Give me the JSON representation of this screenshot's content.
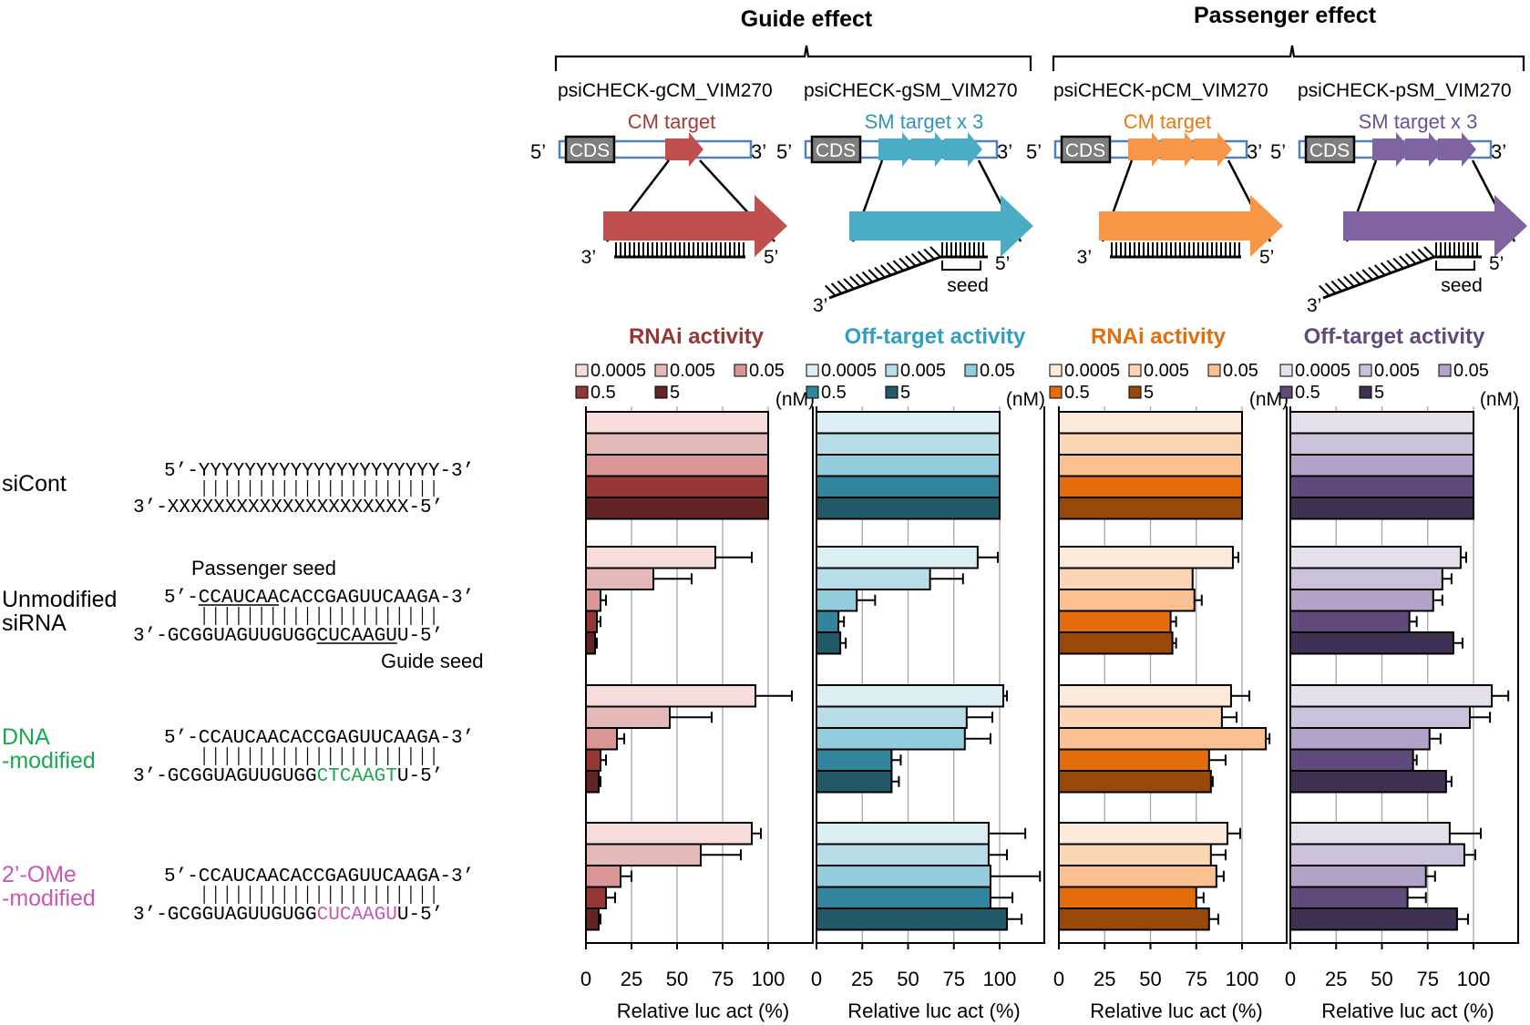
{
  "sections": {
    "guide": "Guide effect",
    "passenger": "Passenger effect"
  },
  "constructs": [
    {
      "name": "psiCHECK-gCM_VIM270",
      "target": "CM target",
      "color": "#c0504d",
      "label_color": "#a33a36",
      "seed": false
    },
    {
      "name": "psiCHECK-gSM_VIM270",
      "target": "SM target x 3",
      "color": "#4bacc6",
      "label_color": "#2f97b3",
      "seed": true
    },
    {
      "name": "psiCHECK-pCM_VIM270",
      "target": "CM target",
      "color": "#f79646",
      "label_color": "#e8780f",
      "seed": false
    },
    {
      "name": "psiCHECK-pSM_VIM270",
      "target": "SM target x 3",
      "color": "#8064a2",
      "label_color": "#6c4f95",
      "seed": true
    }
  ],
  "diagram_labels": {
    "cds": "CDS",
    "five_prime": "5’",
    "three_prime": "3’",
    "seed": "seed"
  },
  "sequences": {
    "rows": [
      {
        "label_lines": [
          "siCont"
        ],
        "label_color": "#000000",
        "top": "5’-YYYYYYYYYYYYYYYYYYYYY-3’",
        "bottom": "3’-XXXXXXXXXXXXXXXXXXXXX-5’",
        "modified": ""
      },
      {
        "label_lines": [
          "Unmodified",
          "siRNA"
        ],
        "label_color": "#000000",
        "top": "5’-CCAUCAACACCGAGUUCAAGA-3’",
        "bottom": "3’-GCGGUAGUUGUGGCUCAAGUU-5’",
        "modified": ""
      },
      {
        "label_lines": [
          "DNA",
          "-modified"
        ],
        "label_color": "#1aa850",
        "top": "5’-CCAUCAACACCGAGUUCAAGA-3’",
        "bottom_pre": "3’-GCGGUAGUUGUGG",
        "bottom_mod": "CTCAAGT",
        "bottom_post": "U-5’",
        "modified": "#1aa850"
      },
      {
        "label_lines": [
          "2’-OMe",
          "-modified"
        ],
        "label_color": "#c957b4",
        "top": "5’-CCAUCAACACCGAGUUCAAGA-3’",
        "bottom_pre": "3’-GCGGUAGUUGUGG",
        "bottom_mod": "CUCAAGU",
        "bottom_post": "U-5’",
        "modified": "#c957b4"
      }
    ],
    "passenger_seed": "Passenger seed",
    "guide_seed": "Guide seed"
  },
  "chart_data": [
    {
      "type": "bar",
      "orientation": "horizontal",
      "title": "RNAi activity",
      "title_color": "#953735",
      "xlabel": "Relative luc act (%)",
      "xlim": [
        0,
        125
      ],
      "xticks": [
        0,
        25,
        50,
        75,
        100
      ],
      "legend_unit": "(nM)",
      "categories": [
        "siCont",
        "Unmodified siRNA",
        "DNA-modified",
        "2’-OMe-modified"
      ],
      "series": [
        {
          "name": "0.0005",
          "color": "#f6dddc",
          "values": [
            100,
            71,
            93,
            91
          ],
          "errors": [
            0,
            20,
            20,
            5
          ]
        },
        {
          "name": "0.005",
          "color": "#e5b9b7",
          "values": [
            100,
            37,
            46,
            63
          ],
          "errors": [
            0,
            21,
            23,
            22
          ]
        },
        {
          "name": "0.05",
          "color": "#d99694",
          "values": [
            100,
            8,
            17,
            19
          ],
          "errors": [
            0,
            3,
            4,
            6
          ]
        },
        {
          "name": "0.5",
          "color": "#953735",
          "values": [
            100,
            6,
            8,
            11
          ],
          "errors": [
            0,
            2,
            3,
            5
          ]
        },
        {
          "name": "5",
          "color": "#632523",
          "values": [
            100,
            5,
            7,
            7
          ],
          "errors": [
            0,
            1,
            1,
            1
          ]
        }
      ]
    },
    {
      "type": "bar",
      "orientation": "horizontal",
      "title": "Off-target activity",
      "title_color": "#31a0c0",
      "xlabel": "Relative luc act (%)",
      "xlim": [
        0,
        125
      ],
      "xticks": [
        0,
        25,
        50,
        75,
        100
      ],
      "legend_unit": "(nM)",
      "categories": [
        "siCont",
        "Unmodified siRNA",
        "DNA-modified",
        "2’-OMe-modified"
      ],
      "series": [
        {
          "name": "0.0005",
          "color": "#daeef3",
          "values": [
            100,
            88,
            102,
            94
          ],
          "errors": [
            0,
            11,
            2,
            20
          ]
        },
        {
          "name": "0.005",
          "color": "#b7dde8",
          "values": [
            100,
            62,
            82,
            94
          ],
          "errors": [
            0,
            18,
            14,
            10
          ]
        },
        {
          "name": "0.05",
          "color": "#93cddd",
          "values": [
            100,
            22,
            81,
            95
          ],
          "errors": [
            0,
            10,
            14,
            27
          ]
        },
        {
          "name": "0.5",
          "color": "#31849b",
          "values": [
            100,
            12,
            41,
            95
          ],
          "errors": [
            0,
            3,
            5,
            12
          ]
        },
        {
          "name": "5",
          "color": "#215967",
          "values": [
            100,
            13,
            41,
            104
          ],
          "errors": [
            0,
            3,
            4,
            8
          ]
        }
      ]
    },
    {
      "type": "bar",
      "orientation": "horizontal",
      "title": "RNAi activity",
      "title_color": "#e46c0a",
      "xlabel": "Relative luc act (%)",
      "xlim": [
        0,
        125
      ],
      "xticks": [
        0,
        25,
        50,
        75,
        100
      ],
      "legend_unit": "(nM)",
      "categories": [
        "siCont",
        "Unmodified siRNA",
        "DNA-modified",
        "2’-OMe-modified"
      ],
      "series": [
        {
          "name": "0.0005",
          "color": "#fdeada",
          "values": [
            100,
            95,
            94,
            92
          ],
          "errors": [
            0,
            3,
            10,
            7
          ]
        },
        {
          "name": "0.005",
          "color": "#fcd5b5",
          "values": [
            100,
            73,
            89,
            83
          ],
          "errors": [
            0,
            0,
            8,
            8
          ]
        },
        {
          "name": "0.05",
          "color": "#fac090",
          "values": [
            100,
            74,
            113,
            86
          ],
          "errors": [
            0,
            4,
            2,
            4
          ]
        },
        {
          "name": "0.5",
          "color": "#e46c0a",
          "values": [
            100,
            61,
            82,
            75
          ],
          "errors": [
            0,
            3,
            9,
            4
          ]
        },
        {
          "name": "5",
          "color": "#984807",
          "values": [
            100,
            62,
            83,
            82
          ],
          "errors": [
            0,
            2,
            1,
            5
          ]
        }
      ]
    },
    {
      "type": "bar",
      "orientation": "horizontal",
      "title": "Off-target activity",
      "title_color": "#604a7b",
      "xlabel": "Relative luc act (%)",
      "xlim": [
        0,
        125
      ],
      "xticks": [
        0,
        25,
        50,
        75,
        100
      ],
      "legend_unit": "(nM)",
      "categories": [
        "siCont",
        "Unmodified siRNA",
        "DNA-modified",
        "2’-OMe-modified"
      ],
      "series": [
        {
          "name": "0.0005",
          "color": "#e6e0ec",
          "values": [
            100,
            93,
            110,
            87
          ],
          "errors": [
            0,
            3,
            9,
            17
          ]
        },
        {
          "name": "0.005",
          "color": "#ccc1da",
          "values": [
            100,
            83,
            98,
            95
          ],
          "errors": [
            0,
            5,
            11,
            6
          ]
        },
        {
          "name": "0.05",
          "color": "#b3a2c7",
          "values": [
            100,
            78,
            76,
            74
          ],
          "errors": [
            0,
            5,
            6,
            5
          ]
        },
        {
          "name": "0.5",
          "color": "#604a7b",
          "values": [
            100,
            65,
            67,
            64
          ],
          "errors": [
            0,
            4,
            2,
            10
          ]
        },
        {
          "name": "5",
          "color": "#3f3151",
          "values": [
            100,
            89,
            85,
            91
          ],
          "errors": [
            0,
            5,
            3,
            6
          ]
        }
      ]
    }
  ]
}
